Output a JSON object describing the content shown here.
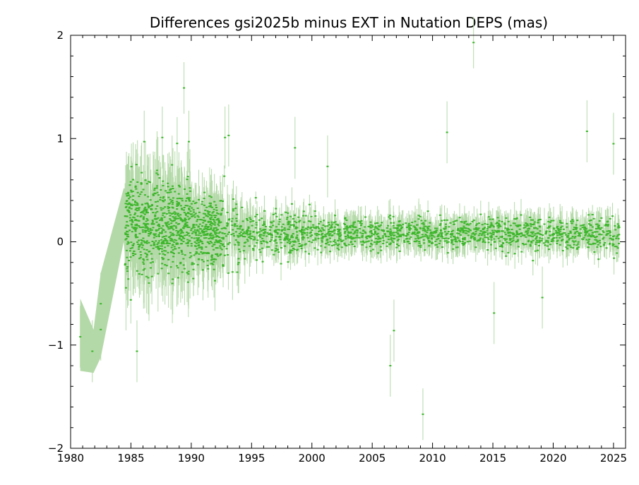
{
  "chart_data": {
    "type": "scatter",
    "title": "Differences gsi2025b minus EXT in Nutation DEPS (mas)",
    "xlabel": "",
    "ylabel": "",
    "xlim": [
      1980,
      2026
    ],
    "ylim": [
      -2,
      2
    ],
    "x_ticks": [
      1980,
      1985,
      1990,
      1995,
      2000,
      2005,
      2010,
      2015,
      2020,
      2025
    ],
    "x_tick_labels": [
      "1980",
      "1985",
      "1990",
      "1995",
      "2000",
      "2005",
      "2010",
      "2015",
      "2020",
      "2025"
    ],
    "y_ticks": [
      -2,
      -1,
      0,
      1,
      2
    ],
    "y_tick_labels": [
      "−2",
      "−1",
      "0",
      "1",
      "2"
    ],
    "grid": false,
    "legend": "none",
    "colors": {
      "points": "#3cb62a",
      "error_band": "#b4d9a8",
      "axis": "#000000"
    },
    "series": [
      {
        "name": "",
        "description_points": [
          {
            "x": 1980.8,
            "y": -0.92
          },
          {
            "x": 1981.8,
            "y": -1.06
          },
          {
            "x": 1982.5,
            "y": -0.85
          },
          {
            "x": 1982.5,
            "y": -0.6
          },
          {
            "x": 1985.5,
            "y": -1.06
          },
          {
            "x": 1986.1,
            "y": 0.97
          },
          {
            "x": 1987.6,
            "y": 1.01
          },
          {
            "x": 1989.4,
            "y": 1.49
          },
          {
            "x": 1989.8,
            "y": 0.97
          },
          {
            "x": 1992.8,
            "y": 1.01
          },
          {
            "x": 1993.1,
            "y": 1.03
          },
          {
            "x": 1998.6,
            "y": 0.91
          },
          {
            "x": 2001.3,
            "y": 0.73
          },
          {
            "x": 2006.5,
            "y": -1.2
          },
          {
            "x": 2006.8,
            "y": -0.86
          },
          {
            "x": 2009.2,
            "y": -1.67
          },
          {
            "x": 2011.2,
            "y": 1.06
          },
          {
            "x": 2013.4,
            "y": 1.93
          },
          {
            "x": 2015.1,
            "y": -0.69
          },
          {
            "x": 2019.1,
            "y": -0.54
          },
          {
            "x": 2022.8,
            "y": 1.07
          },
          {
            "x": 2025.0,
            "y": 0.95
          }
        ]
      }
    ]
  }
}
